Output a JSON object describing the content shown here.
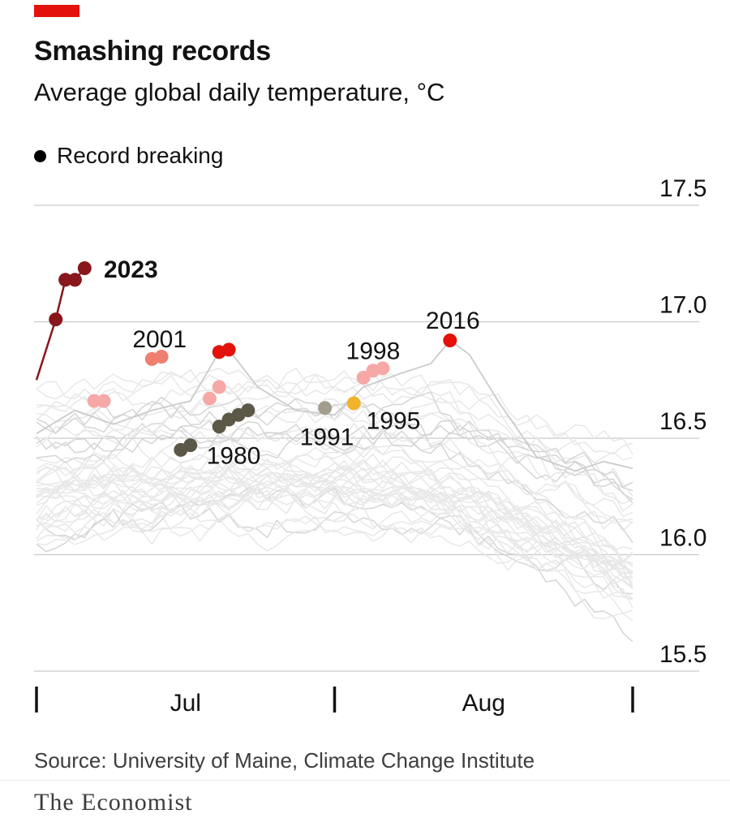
{
  "page": {
    "background_color": "#ffffff"
  },
  "header": {
    "tab_color": "#e3120b",
    "title": "Smashing records",
    "subtitle": "Average global daily temperature, °C"
  },
  "legend": {
    "marker_color": "#000000",
    "label": "Record breaking"
  },
  "footer": {
    "source": "Source: University of Maine, Climate Change Institute",
    "brand": "The Economist"
  },
  "chart_data": {
    "type": "line",
    "title": "Smashing records",
    "subtitle": "Average global daily temperature, °C",
    "unit": "°C",
    "legend": [
      {
        "label": "Record breaking",
        "color": "#000000"
      }
    ],
    "x_axis": {
      "tick_days": [
        0,
        31,
        62
      ],
      "month_labels": [
        {
          "text": "Jul",
          "day": 15.5
        },
        {
          "text": "Aug",
          "day": 46.5
        }
      ],
      "range_days": [
        0,
        62
      ]
    },
    "y_axis": {
      "ticks": [
        "15.5",
        "16.0",
        "16.5",
        "17.0",
        "17.5"
      ],
      "tick_values": [
        15.5,
        16.0,
        16.5,
        17.0,
        17.5
      ],
      "grid": true,
      "side": "right"
    },
    "background_lines": {
      "description": "Unlabelled grey spaghetti: daily temperatures for other years (approximate band)",
      "count": 42,
      "color": "#e8e8e8",
      "accent_color": "#d5d5d5",
      "seed": 20230704,
      "band": [
        15.6,
        16.8
      ]
    },
    "record_series": [
      {
        "year": "2023",
        "color": "#88161b",
        "points": [
          {
            "day": 2,
            "temp": 17.01
          },
          {
            "day": 3,
            "temp": 17.18
          },
          {
            "day": 4,
            "temp": 17.18
          },
          {
            "day": 5,
            "temp": 17.23
          }
        ],
        "line": [
          {
            "day": 0,
            "temp": 16.75
          },
          {
            "day": 1,
            "temp": 16.88
          },
          {
            "day": 2,
            "temp": 17.01
          },
          {
            "day": 3,
            "temp": 17.18
          },
          {
            "day": 4,
            "temp": 17.18
          },
          {
            "day": 5,
            "temp": 17.23
          }
        ],
        "label": {
          "text": "2023",
          "day": 7.0,
          "temp": 17.19,
          "anchor": "start",
          "bold": true
        }
      },
      {
        "year": "2016",
        "color": "#e3120b",
        "points": [
          {
            "day": 19,
            "temp": 16.87
          },
          {
            "day": 20,
            "temp": 16.88
          },
          {
            "day": 43,
            "temp": 16.92
          }
        ],
        "context_line": [
          {
            "day": 0,
            "temp": 16.52
          },
          {
            "day": 4,
            "temp": 16.62
          },
          {
            "day": 8,
            "temp": 16.56
          },
          {
            "day": 12,
            "temp": 16.62
          },
          {
            "day": 16,
            "temp": 16.66
          },
          {
            "day": 19,
            "temp": 16.87
          },
          {
            "day": 20,
            "temp": 16.88
          },
          {
            "day": 23,
            "temp": 16.72
          },
          {
            "day": 27,
            "temp": 16.62
          },
          {
            "day": 31,
            "temp": 16.6
          },
          {
            "day": 34,
            "temp": 16.72
          },
          {
            "day": 38,
            "temp": 16.78
          },
          {
            "day": 41,
            "temp": 16.82
          },
          {
            "day": 43,
            "temp": 16.92
          },
          {
            "day": 45,
            "temp": 16.86
          },
          {
            "day": 48,
            "temp": 16.66
          },
          {
            "day": 52,
            "temp": 16.42
          },
          {
            "day": 56,
            "temp": 16.36
          },
          {
            "day": 59,
            "temp": 16.4
          },
          {
            "day": 62,
            "temp": 16.37
          }
        ],
        "label": {
          "text": "2016",
          "day": 43.3,
          "temp": 16.97,
          "anchor": "middle",
          "bold": false
        }
      },
      {
        "year": "2001",
        "color": "#ef7f70",
        "points": [
          {
            "day": 12,
            "temp": 16.84
          },
          {
            "day": 13,
            "temp": 16.85
          }
        ],
        "label": {
          "text": "2001",
          "day": 12.8,
          "temp": 16.89,
          "anchor": "middle",
          "bold": false
        }
      },
      {
        "year": "1998",
        "color": "#f6a8a6",
        "points": [
          {
            "day": 6,
            "temp": 16.66
          },
          {
            "day": 7,
            "temp": 16.66
          },
          {
            "day": 18,
            "temp": 16.67
          },
          {
            "day": 19,
            "temp": 16.72
          },
          {
            "day": 34,
            "temp": 16.76
          },
          {
            "day": 35,
            "temp": 16.79
          },
          {
            "day": 36,
            "temp": 16.8
          }
        ],
        "label": {
          "text": "1998",
          "day": 35.0,
          "temp": 16.84,
          "anchor": "middle",
          "bold": false
        }
      },
      {
        "year": "1995",
        "color": "#f1b32b",
        "points": [
          {
            "day": 33,
            "temp": 16.65
          }
        ],
        "label": {
          "text": "1995",
          "day": 34.3,
          "temp": 16.54,
          "anchor": "start",
          "bold": false
        }
      },
      {
        "year": "1991",
        "color": "#a39d8d",
        "points": [
          {
            "day": 30,
            "temp": 16.63
          }
        ],
        "label": {
          "text": "1991",
          "day": 30.2,
          "temp": 16.47,
          "anchor": "middle",
          "bold": false
        }
      },
      {
        "year": "1980",
        "color": "#5c5847",
        "points": [
          {
            "day": 15,
            "temp": 16.45
          },
          {
            "day": 16,
            "temp": 16.47
          },
          {
            "day": 19,
            "temp": 16.55
          },
          {
            "day": 20,
            "temp": 16.58
          },
          {
            "day": 21,
            "temp": 16.6
          },
          {
            "day": 22,
            "temp": 16.62
          }
        ],
        "label": {
          "text": "1980",
          "day": 20.5,
          "temp": 16.39,
          "anchor": "middle",
          "bold": false
        }
      }
    ]
  }
}
